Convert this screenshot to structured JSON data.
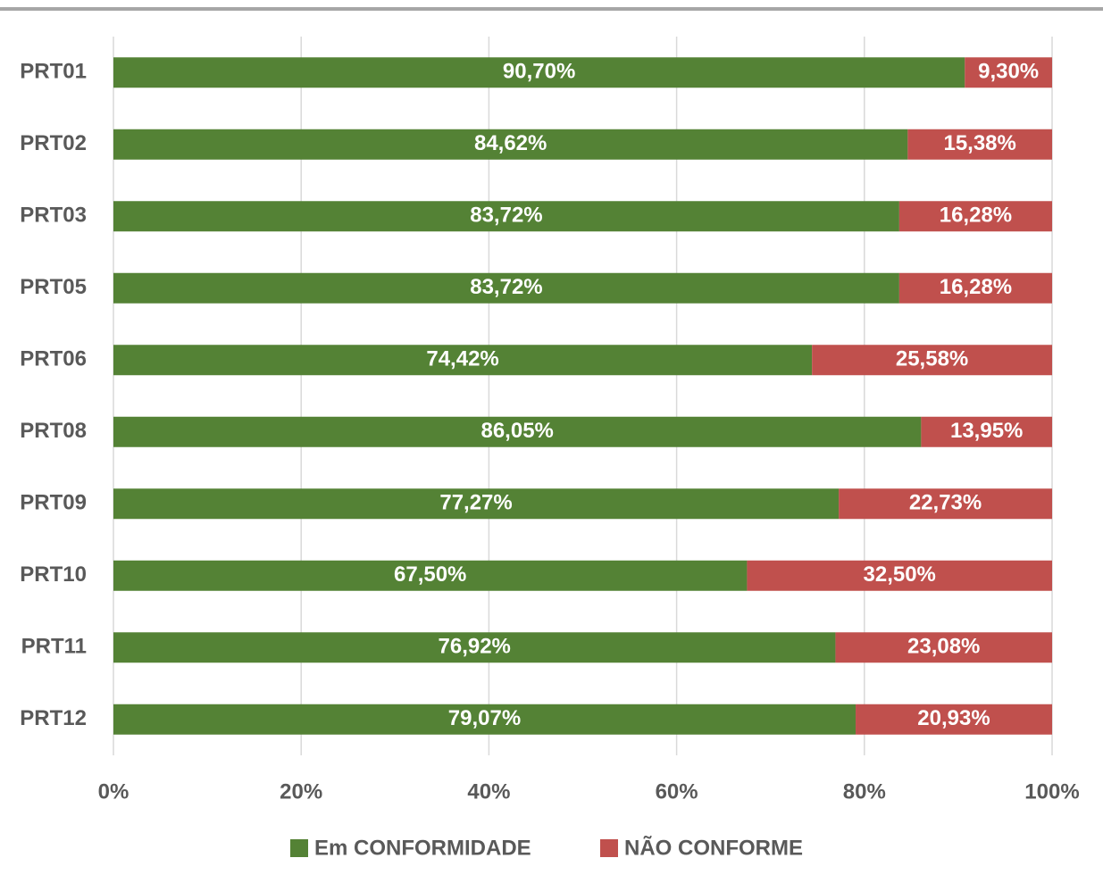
{
  "chart_data": {
    "type": "stacked-barh",
    "categories": [
      "PRT01",
      "PRT02",
      "PRT03",
      "PRT05",
      "PRT06",
      "PRT08",
      "PRT09",
      "PRT10",
      "PRT11",
      "PRT12"
    ],
    "series": [
      {
        "name": "Em CONFORMIDADE",
        "color": "#548235",
        "values": [
          90.7,
          84.62,
          83.72,
          83.72,
          74.42,
          86.05,
          77.27,
          67.5,
          76.92,
          79.07
        ],
        "value_labels": [
          "90,70%",
          "84,62%",
          "83,72%",
          "83,72%",
          "74,42%",
          "86,05%",
          "77,27%",
          "67,50%",
          "76,92%",
          "79,07%"
        ]
      },
      {
        "name": "NÃO CONFORME",
        "color": "#c0504d",
        "values": [
          9.3,
          15.38,
          16.28,
          16.28,
          25.58,
          13.95,
          22.73,
          32.5,
          23.08,
          20.93
        ],
        "value_labels": [
          "9,30%",
          "15,38%",
          "16,28%",
          "16,28%",
          "25,58%",
          "13,95%",
          "22,73%",
          "32,50%",
          "23,08%",
          "20,93%"
        ]
      }
    ],
    "xlim": [
      0,
      100
    ],
    "xticks": [
      {
        "value": 0,
        "label": "0%"
      },
      {
        "value": 20,
        "label": "20%"
      },
      {
        "value": 40,
        "label": "40%"
      },
      {
        "value": 60,
        "label": "60%"
      },
      {
        "value": 80,
        "label": "80%"
      },
      {
        "value": 100,
        "label": "100%"
      }
    ],
    "grid": true,
    "legend": "bottom"
  }
}
